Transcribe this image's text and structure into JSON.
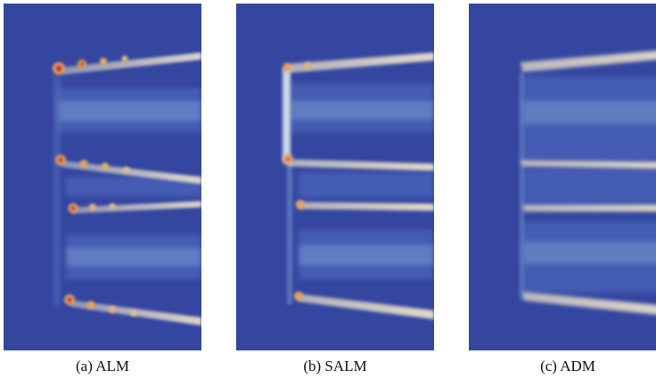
{
  "colors": {
    "background_field": "#3446a0",
    "wake_low": "#4a60b8",
    "wake_mid": "#8fb4dd",
    "wake_high": "#e6ddc8",
    "hot": "#e8a060",
    "peak": "#b01818"
  },
  "panels": [
    {
      "id": "a",
      "caption": "(a)  ALM"
    },
    {
      "id": "b",
      "caption": "(b)  SALM"
    },
    {
      "id": "c",
      "caption": "(c)  ADM"
    }
  ]
}
